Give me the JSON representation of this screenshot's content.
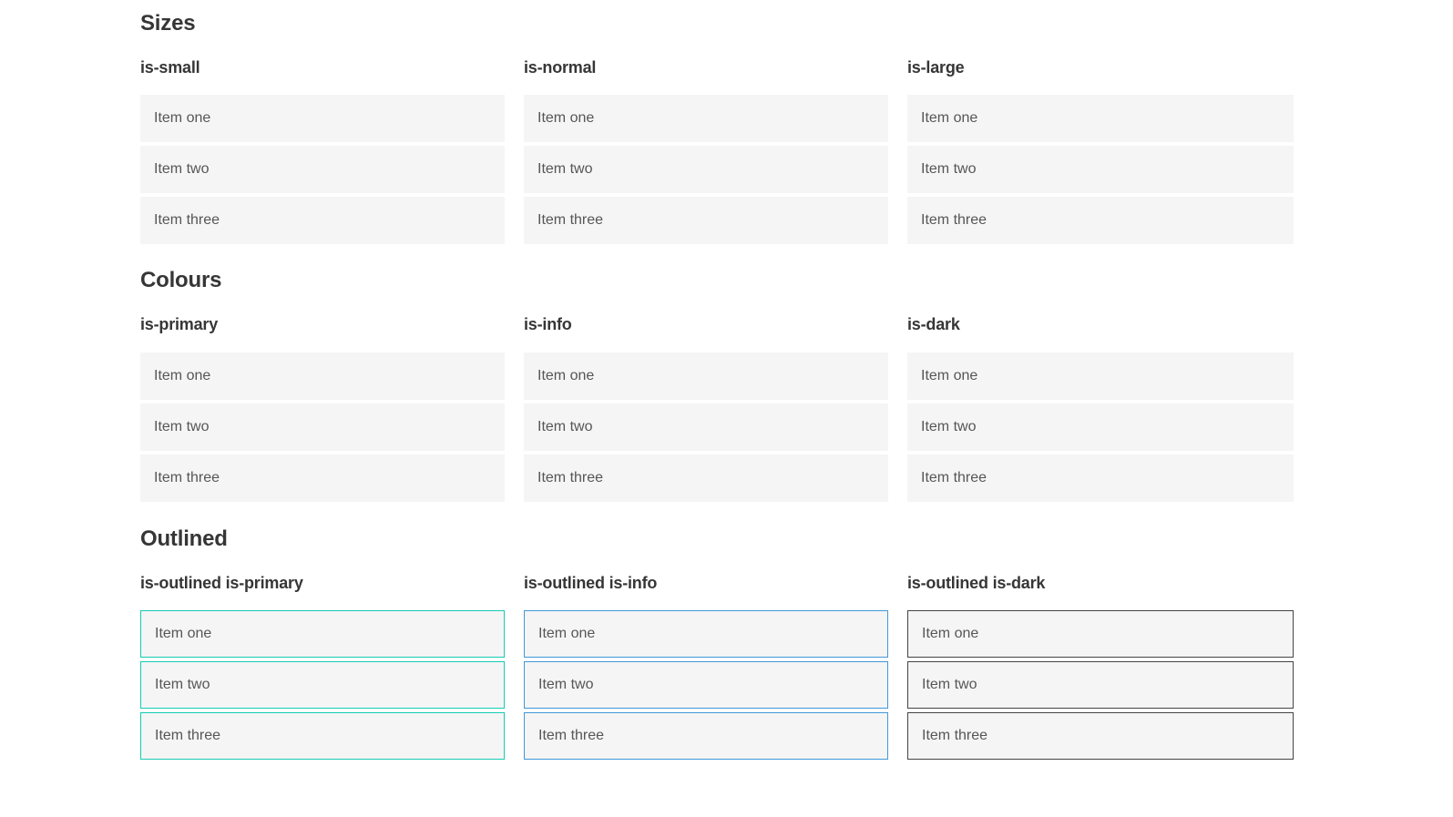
{
  "colors": {
    "heading": "#363636",
    "item-bg": "#f5f5f5",
    "item-text": "#565656",
    "on-color-text": "#ffffff",
    "primary": "#0accb2",
    "info": "#3596db",
    "dark": "#363636",
    "primary-light": "#38d8be",
    "info-light": "#4f9fdd",
    "outline-primary-border": "#15ccb3",
    "outline-info-border": "#4198d9",
    "outline-dark-border": "#444444",
    "outline-dark-text": "#4a4a4a"
  },
  "sections": [
    {
      "title": "Sizes",
      "groups": [
        {
          "label": "is-small",
          "items": [
            "Item one",
            "Item two",
            "Item three"
          ]
        },
        {
          "label": "is-normal",
          "items": [
            "Item one",
            "Item two",
            "Item three"
          ]
        },
        {
          "label": "is-large",
          "items": [
            "Item one",
            "Item two",
            "Item three"
          ]
        }
      ]
    },
    {
      "title": "Colours",
      "groups": [
        {
          "label": "is-primary",
          "items": [
            "Item one",
            "Item two",
            "Item three"
          ]
        },
        {
          "label": "is-info",
          "items": [
            "Item one",
            "Item two",
            "Item three"
          ]
        },
        {
          "label": "is-dark",
          "items": [
            "Item one",
            "Item two",
            "Item three"
          ]
        }
      ]
    },
    {
      "title": "Outlined",
      "groups": [
        {
          "label": "is-outlined is-primary",
          "items": [
            "Item one",
            "Item two",
            "Item three"
          ]
        },
        {
          "label": "is-outlined is-info",
          "items": [
            "Item one",
            "Item two",
            "Item three"
          ]
        },
        {
          "label": "is-outlined is-dark",
          "items": [
            "Item one",
            "Item two",
            "Item three"
          ]
        }
      ]
    }
  ]
}
